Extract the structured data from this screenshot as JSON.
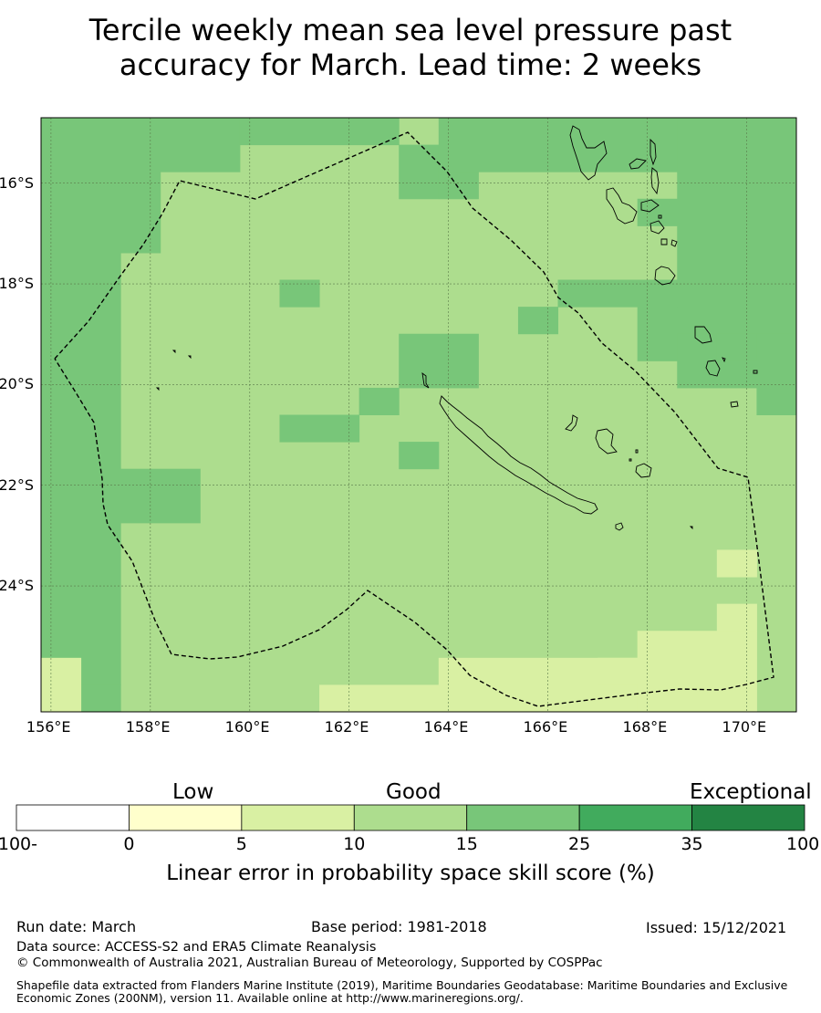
{
  "title": {
    "line1": "Tercile weekly mean sea level pressure past",
    "line2": "accuracy for March. Lead time: 2 weeks"
  },
  "map": {
    "lon_range": [
      155.8,
      171.0
    ],
    "lat_range": [
      -26.5,
      -14.7
    ],
    "lon_ticks": [
      "156°E",
      "158°E",
      "160°E",
      "162°E",
      "164°E",
      "166°E",
      "168°E",
      "170°E"
    ],
    "lat_ticks": [
      "16°S",
      "18°S",
      "20°S",
      "22°S",
      "24°S"
    ],
    "colors": {
      "c0_5": "#ffffcc",
      "c5_10": "#d9f0a3",
      "c10_15": "#addd8e",
      "c15_25": "#78c679",
      "c25_35": "#41ab5d",
      "c35_100": "#238443"
    },
    "regions": [
      {
        "class": "c15_25",
        "cells": [
          [
            0,
            0,
            3,
            5
          ],
          [
            3,
            0,
            5,
            2
          ],
          [
            5,
            0,
            9,
            1
          ],
          [
            9,
            1,
            10,
            3
          ],
          [
            10,
            0,
            11,
            2
          ],
          [
            11,
            0,
            19,
            2
          ],
          [
            16,
            0,
            19,
            8
          ],
          [
            0,
            5,
            2,
            9
          ],
          [
            0,
            9,
            2,
            14
          ],
          [
            0,
            14,
            2,
            21
          ],
          [
            1,
            21,
            2,
            22
          ],
          [
            2,
            13,
            4,
            15
          ],
          [
            6,
            6,
            7,
            7
          ],
          [
            9,
            8,
            11,
            10
          ],
          [
            8,
            10,
            9,
            11
          ],
          [
            6,
            11,
            8,
            12
          ],
          [
            9,
            12,
            10,
            13
          ],
          [
            12,
            7,
            13,
            8
          ],
          [
            13,
            6,
            16,
            7
          ],
          [
            15,
            3,
            16,
            4
          ],
          [
            10,
            2,
            11,
            3
          ],
          [
            15,
            7,
            16,
            9
          ],
          [
            16,
            8,
            19,
            10
          ],
          [
            17,
            8,
            18,
            9
          ],
          [
            18,
            9,
            19,
            11
          ]
        ]
      },
      {
        "class": "c5_10",
        "cells": [
          [
            0,
            20,
            1,
            22
          ],
          [
            7,
            21,
            10,
            22
          ],
          [
            10,
            20,
            18,
            22
          ],
          [
            17,
            18,
            18,
            19
          ],
          [
            16,
            19,
            18,
            20
          ],
          [
            15,
            19,
            16,
            22
          ],
          [
            14,
            20,
            15,
            21
          ],
          [
            17,
            16,
            18,
            17
          ]
        ]
      }
    ]
  },
  "colorbar": {
    "labels": {
      "low": "Low",
      "good": "Good",
      "exceptional": "Exceptional"
    },
    "ticks": [
      "-100",
      "0",
      "5",
      "10",
      "15",
      "25",
      "35",
      "100"
    ],
    "title": "Linear error in probability space skill score (%)"
  },
  "footer": {
    "run_date": "Run date: March",
    "base_period": "Base period: 1981-2018",
    "issued": "Issued: 15/12/2021",
    "data_source": "Data source: ACCESS-S2 and ERA5 Climate Reanalysis",
    "copyright": "© Commonwealth of Australia 2021, Australian Bureau of Meteorology, Supported by COSPPac",
    "shapefile": "Shapefile data extracted from Flanders Marine Institute (2019), Maritime Boundaries Geodatabase: Maritime Boundaries and Exclusive Economic Zones (200NM), version 11. Available online at http://www.marineregions.org/."
  }
}
